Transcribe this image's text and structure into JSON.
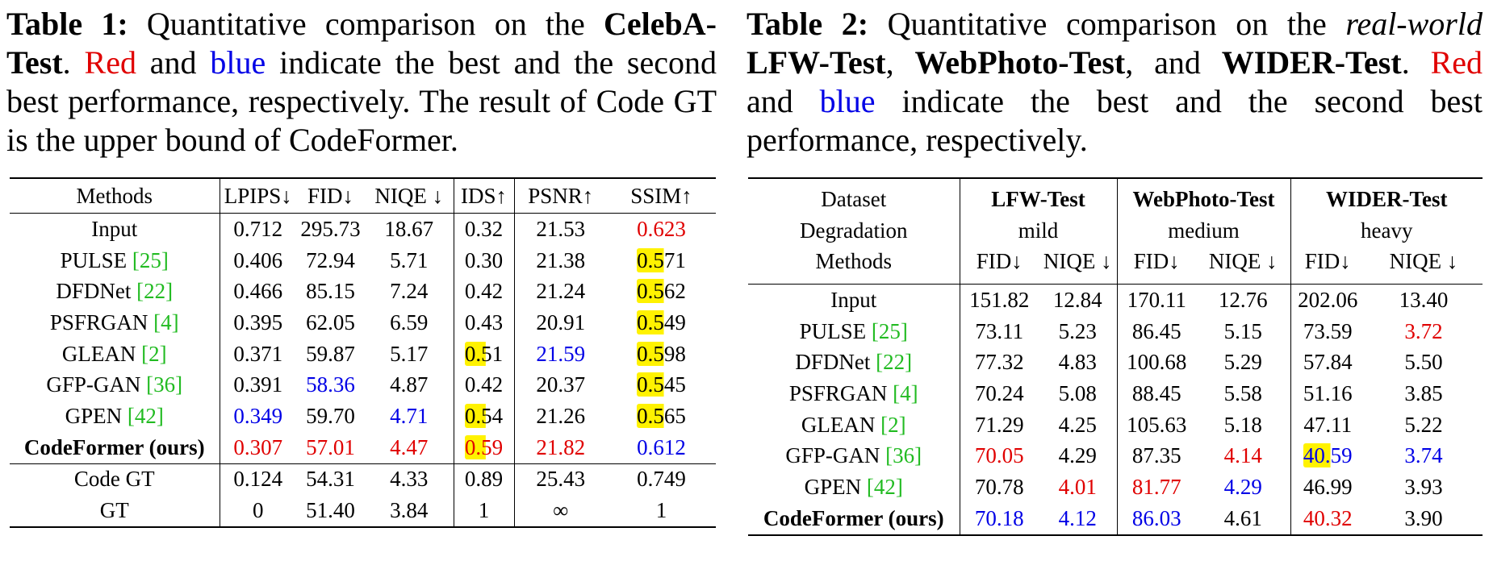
{
  "table1": {
    "caption": {
      "label": "Table 1:",
      "part1": " Quantitative comparison on the ",
      "dataset": "CelebA-Test",
      "part2": ". ",
      "red_word": "Red",
      "part3": " and ",
      "blue_word": "blue",
      "part4": " indicate the best and the second best performance, respectively. The result of Code GT is the upper bound of CodeFormer."
    },
    "headers": [
      "Methods",
      "LPIPS↓",
      "FID↓",
      "NIQE ↓",
      "IDS↑",
      "PSNR↑",
      "SSIM↑"
    ],
    "rows": [
      {
        "method": "Input",
        "ref": "",
        "values": [
          "0.712",
          "295.73",
          "18.67",
          "0.32",
          "21.53",
          "0.623"
        ]
      },
      {
        "method": "PULSE ",
        "ref": "[25]",
        "values": [
          "0.406",
          "72.94",
          "5.71",
          "0.30",
          "21.38",
          "0.571"
        ]
      },
      {
        "method": "DFDNet ",
        "ref": "[22]",
        "values": [
          "0.466",
          "85.15",
          "7.24",
          "0.42",
          "21.24",
          "0.562"
        ]
      },
      {
        "method": "PSFRGAN ",
        "ref": "[4]",
        "values": [
          "0.395",
          "62.05",
          "6.59",
          "0.43",
          "20.91",
          "0.549"
        ]
      },
      {
        "method": "GLEAN ",
        "ref": "[2]",
        "values": [
          "0.371",
          "59.87",
          "5.17",
          "0.51",
          "21.59",
          "0.598"
        ]
      },
      {
        "method": "GFP-GAN ",
        "ref": "[36]",
        "values": [
          "0.391",
          "58.36",
          "4.87",
          "0.42",
          "20.37",
          "0.545"
        ]
      },
      {
        "method": "GPEN ",
        "ref": "[42]",
        "values": [
          "0.349",
          "59.70",
          "4.71",
          "0.54",
          "21.26",
          "0.565"
        ]
      },
      {
        "method": "CodeFormer (ours)",
        "ref": "",
        "values": [
          "0.307",
          "57.01",
          "4.47",
          "0.59",
          "21.82",
          "0.612"
        ]
      }
    ],
    "bounds": [
      {
        "method": "Code GT",
        "values": [
          "0.124",
          "54.31",
          "4.33",
          "0.89",
          "25.43",
          "0.749"
        ]
      },
      {
        "method": "GT",
        "values": [
          "0",
          "51.40",
          "3.84",
          "1",
          "∞",
          "1"
        ]
      }
    ]
  },
  "table2": {
    "caption": {
      "label": "Table 2:",
      "part1": " Quantitative comparison on the ",
      "realworld": "real-world",
      "ds1": "LFW-Test",
      "sep1": ", ",
      "ds2": "WebPhoto-Test",
      "sep2": ", and ",
      "ds3": "WIDER-Test",
      "part2": ". ",
      "red_word": "Red",
      "part3": " and ",
      "blue_word": "blue",
      "part4": " indicate the best and the second best performance, respectively."
    },
    "header_rows": {
      "dataset_label": "Dataset",
      "degradation_label": "Degradation",
      "methods_label": "Methods",
      "datasets": [
        "LFW-Test",
        "WebPhoto-Test",
        "WIDER-Test"
      ],
      "degradations": [
        "mild",
        "medium",
        "heavy"
      ],
      "metrics": [
        "FID↓",
        "NIQE ↓",
        "FID↓",
        "NIQE ↓",
        "FID↓",
        "NIQE ↓"
      ]
    },
    "rows": [
      {
        "method": "Input",
        "ref": "",
        "values": [
          "151.82",
          "12.84",
          "170.11",
          "12.76",
          "202.06",
          "13.40"
        ]
      },
      {
        "method": "PULSE ",
        "ref": "[25]",
        "values": [
          "73.11",
          "5.23",
          "86.45",
          "5.15",
          "73.59",
          "3.72"
        ]
      },
      {
        "method": "DFDNet ",
        "ref": "[22]",
        "values": [
          "77.32",
          "4.83",
          "100.68",
          "5.29",
          "57.84",
          "5.50"
        ]
      },
      {
        "method": "PSFRGAN ",
        "ref": "[4]",
        "values": [
          "70.24",
          "5.08",
          "88.45",
          "5.58",
          "51.16",
          "3.85"
        ]
      },
      {
        "method": "GLEAN ",
        "ref": "[2]",
        "values": [
          "71.29",
          "4.25",
          "105.63",
          "5.18",
          "47.11",
          "5.22"
        ]
      },
      {
        "method": "GFP-GAN ",
        "ref": "[36]",
        "values": [
          "70.05",
          "4.29",
          "87.35",
          "4.14",
          "40.59",
          "3.74"
        ]
      },
      {
        "method": "GPEN ",
        "ref": "[42]",
        "values": [
          "70.78",
          "4.01",
          "81.77",
          "4.29",
          "46.99",
          "3.93"
        ]
      },
      {
        "method": "CodeFormer (ours)",
        "ref": "",
        "values": [
          "70.18",
          "4.12",
          "86.03",
          "4.61",
          "40.32",
          "3.90"
        ]
      }
    ]
  },
  "colors": {
    "best": "#e00000",
    "second": "#0000e6",
    "citation": "#22bb22",
    "highlight": "#fff200"
  }
}
